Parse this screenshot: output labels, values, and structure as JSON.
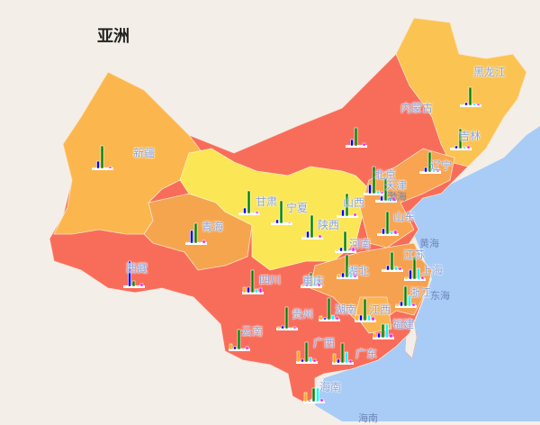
{
  "continent_label": "亚洲",
  "colors": {
    "land": "#f3efe8",
    "sea": "#a8ccf6",
    "high": "#f86d5a",
    "mid_high": "#f8a450",
    "mid": "#fbbf50",
    "low": "#fbe655",
    "bars": [
      "#ffa500",
      "#0000ff",
      "#008000",
      "#00ffff",
      "#ff00ff"
    ]
  },
  "sea_labels": [
    "渤海",
    "黄海",
    "东海",
    "海南"
  ],
  "provinces": [
    {
      "name": "新疆",
      "values": [
        0,
        8,
        25,
        0,
        2
      ]
    },
    {
      "name": "西藏",
      "values": [
        0,
        28,
        6,
        0,
        3
      ]
    },
    {
      "name": "青海",
      "values": [
        0,
        14,
        22,
        0,
        3
      ]
    },
    {
      "name": "甘肃",
      "values": [
        0,
        6,
        25,
        0,
        2
      ]
    },
    {
      "name": "宁夏",
      "values": [
        0,
        4,
        25,
        0,
        1
      ]
    },
    {
      "name": "陕西",
      "values": [
        0,
        7,
        25,
        0,
        3
      ]
    },
    {
      "name": "山西",
      "values": [
        0,
        7,
        25,
        0,
        3
      ]
    },
    {
      "name": "内蒙古",
      "values": [
        0,
        7,
        20,
        0,
        3
      ]
    },
    {
      "name": "黑龙江",
      "values": [
        0,
        3,
        20,
        2,
        2
      ]
    },
    {
      "name": "吉林",
      "values": [
        0,
        3,
        22,
        2,
        3
      ]
    },
    {
      "name": "辽宁",
      "values": [
        0,
        5,
        22,
        3,
        3
      ]
    },
    {
      "name": "北京",
      "values": [
        0,
        10,
        30,
        3,
        2
      ]
    },
    {
      "name": "天津",
      "values": [
        0,
        5,
        25,
        4,
        4
      ]
    },
    {
      "name": "山东",
      "values": [
        0,
        6,
        25,
        3,
        4
      ]
    },
    {
      "name": "河南",
      "values": [
        1,
        4,
        22,
        1,
        4
      ]
    },
    {
      "name": "江苏",
      "values": [
        0,
        5,
        20,
        4,
        3
      ]
    },
    {
      "name": "上海",
      "values": [
        2,
        10,
        25,
        12,
        3
      ]
    },
    {
      "name": "浙江",
      "values": [
        2,
        5,
        22,
        12,
        3
      ]
    },
    {
      "name": "湖北",
      "values": [
        3,
        5,
        25,
        10,
        5
      ]
    },
    {
      "name": "重庆",
      "values": [
        2,
        4,
        15,
        10,
        4
      ]
    },
    {
      "name": "四川",
      "values": [
        6,
        6,
        25,
        4,
        5
      ]
    },
    {
      "name": "贵州",
      "values": [
        2,
        3,
        24,
        1,
        2
      ]
    },
    {
      "name": "云南",
      "values": [
        6,
        3,
        22,
        1,
        3
      ]
    },
    {
      "name": "湖南",
      "values": [
        4,
        2,
        24,
        5,
        3
      ]
    },
    {
      "name": "江西",
      "values": [
        6,
        6,
        24,
        6,
        4
      ]
    },
    {
      "name": "福建",
      "values": [
        5,
        5,
        15,
        15,
        4
      ]
    },
    {
      "name": "广西",
      "values": [
        12,
        3,
        22,
        5,
        3
      ]
    },
    {
      "name": "广东",
      "values": [
        10,
        4,
        22,
        12,
        3
      ]
    },
    {
      "name": "海南",
      "values": [
        10,
        1,
        15,
        15,
        3
      ]
    }
  ]
}
